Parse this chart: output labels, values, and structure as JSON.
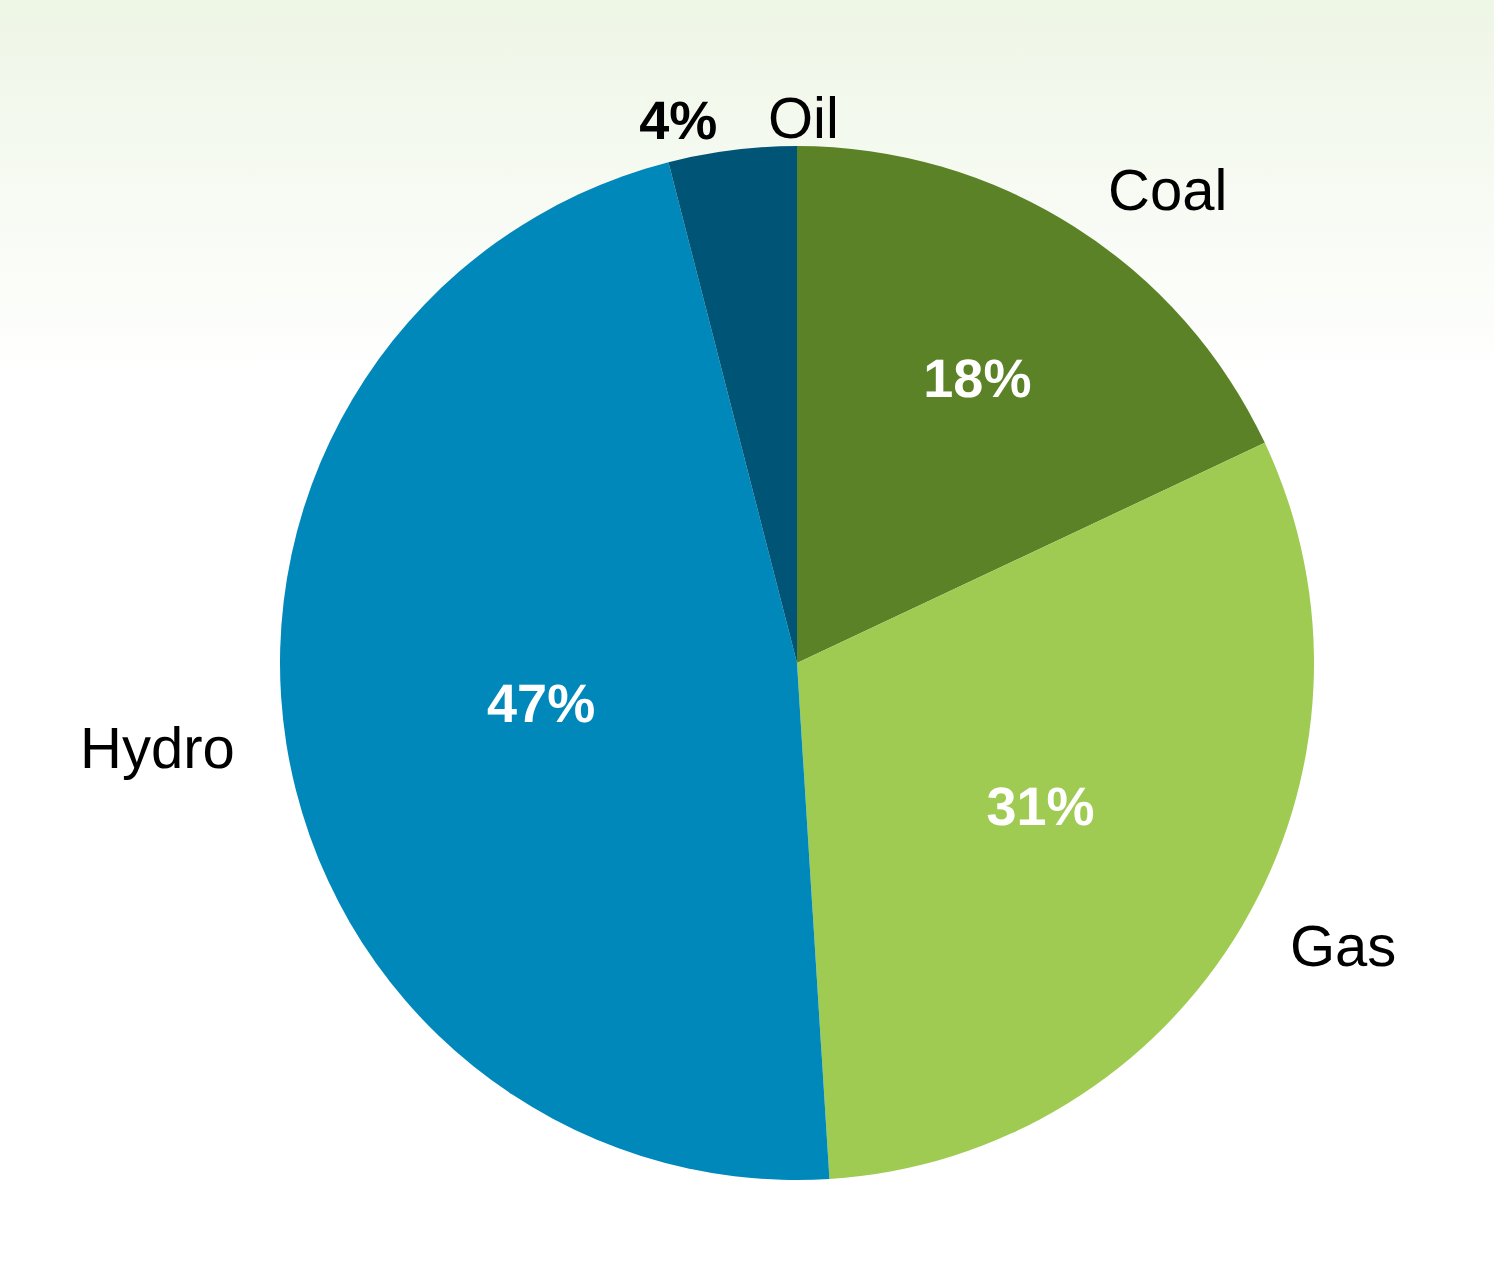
{
  "chart_data": {
    "type": "pie",
    "categories": [
      "Coal",
      "Gas",
      "Hydro",
      "Oil"
    ],
    "values": [
      18,
      31,
      47,
      4
    ],
    "colors": [
      "#5b8226",
      "#9fcb52",
      "#0088bb",
      "#005577"
    ],
    "value_labels": [
      "18%",
      "31%",
      "47%",
      "4%"
    ],
    "legend": false
  }
}
